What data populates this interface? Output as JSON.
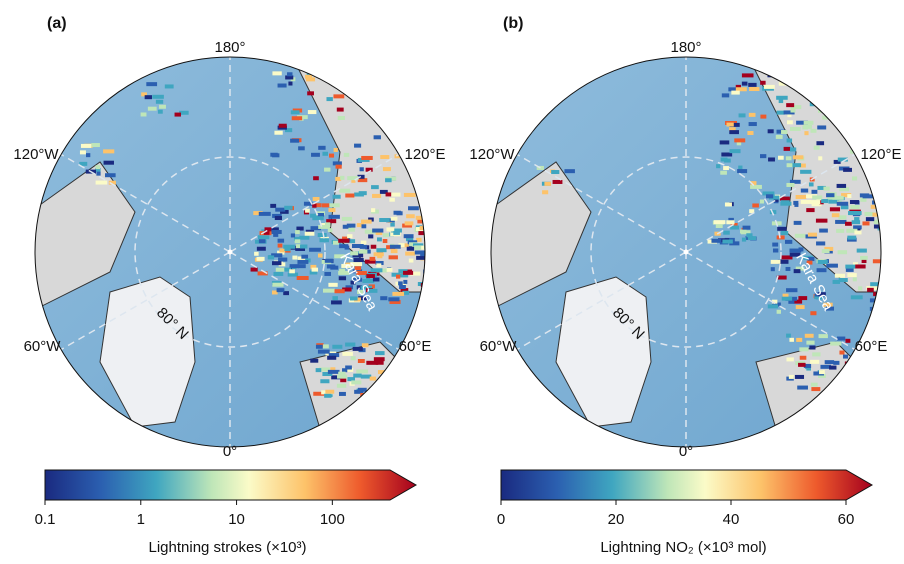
{
  "panels": [
    {
      "label": "(a)",
      "longitudes": [
        "180°",
        "120°E",
        "60°E",
        "0°",
        "60°W",
        "120°W"
      ],
      "latitude_label": "80° N",
      "sea_label": "Kara Sea",
      "colorbar": {
        "title": "Lightning strokes (×10³)",
        "scale": "log",
        "lim": [
          0.1,
          400
        ],
        "ticks": [
          0.1,
          1,
          10,
          100
        ]
      }
    },
    {
      "label": "(b)",
      "longitudes": [
        "180°",
        "120°E",
        "60°E",
        "0°",
        "60°W",
        "120°W"
      ],
      "latitude_label": "80° N",
      "sea_label": "Kara Sea",
      "colorbar": {
        "title": "Lightning NO₂ (×10³ mol)",
        "scale": "linear",
        "lim": [
          0,
          60
        ],
        "ticks": [
          0,
          20,
          40,
          60
        ]
      }
    }
  ]
}
